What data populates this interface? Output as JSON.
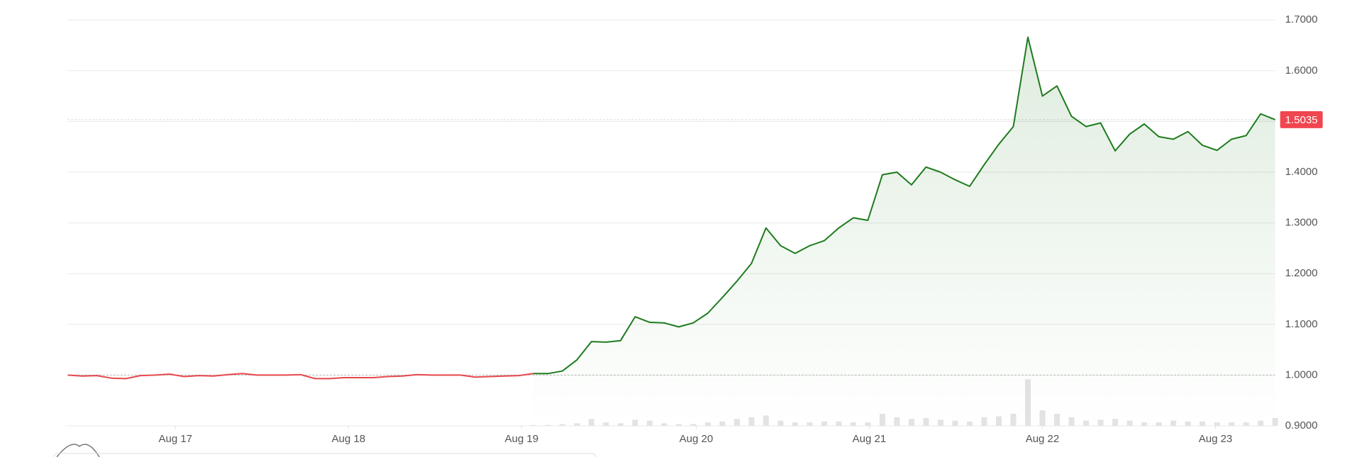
{
  "chart_data": {
    "type": "line",
    "series": [
      {
        "color": "#e5484d",
        "values": [
          1.0,
          0.998,
          0.999,
          0.994,
          0.993,
          0.999,
          1.0,
          1.002,
          0.997,
          0.999,
          0.998,
          1.001,
          1.003,
          1.0,
          1.0,
          1.0,
          1.001,
          0.993,
          0.993,
          0.995,
          0.995,
          0.995,
          0.997,
          0.998,
          1.001,
          1.0,
          1.0,
          1.0,
          0.996,
          0.997,
          0.998,
          0.999,
          1.003,
          null,
          null,
          null,
          null,
          null,
          null,
          null,
          null,
          null,
          null,
          null,
          null,
          null,
          null,
          null,
          null,
          null,
          null,
          null,
          null,
          null,
          null,
          null,
          null,
          null,
          null,
          null,
          null,
          null,
          null,
          null,
          null,
          null,
          null,
          null,
          null,
          null,
          null,
          null,
          null,
          null,
          null,
          null,
          null,
          null,
          null,
          null,
          null,
          null,
          null,
          null
        ]
      },
      {
        "color": "#1e7b1e",
        "values": [
          null,
          null,
          null,
          null,
          null,
          null,
          null,
          null,
          null,
          null,
          null,
          null,
          null,
          null,
          null,
          null,
          null,
          null,
          null,
          null,
          null,
          null,
          null,
          null,
          null,
          null,
          null,
          null,
          null,
          null,
          null,
          null,
          1.003,
          1.003,
          1.008,
          1.03,
          1.066,
          1.065,
          1.068,
          1.115,
          1.104,
          1.103,
          1.095,
          1.103,
          1.122,
          1.153,
          1.185,
          1.22,
          1.29,
          1.255,
          1.24,
          1.255,
          1.265,
          1.29,
          1.31,
          1.305,
          1.395,
          1.4,
          1.375,
          1.41,
          1.4,
          1.385,
          1.372,
          1.415,
          1.455,
          1.49,
          1.666,
          1.55,
          1.57,
          1.51,
          1.49,
          1.497,
          1.442,
          1.475,
          1.495,
          1.47,
          1.465,
          1.48,
          1.453,
          1.443,
          1.465,
          1.472,
          1.515,
          1.5035
        ]
      }
    ],
    "volume": {
      "color": "#e3e3e3",
      "values": [
        0.3,
        0.3,
        0.3,
        0.3,
        0.3,
        0.3,
        0.3,
        0.3,
        0.3,
        0.3,
        0.3,
        0.3,
        0.3,
        0.3,
        0.3,
        0.3,
        0.3,
        0.3,
        0.3,
        0.3,
        0.3,
        0.3,
        0.3,
        0.3,
        0.3,
        0.3,
        0.3,
        0.3,
        0.3,
        0.3,
        0.3,
        0.3,
        1,
        1,
        2,
        3,
        8,
        4,
        3,
        7,
        6,
        3,
        2,
        2,
        4,
        5,
        8,
        10,
        12,
        6,
        4,
        4,
        5,
        5,
        4,
        4,
        14,
        10,
        8,
        9,
        7,
        6,
        5,
        10,
        11,
        14,
        54,
        18,
        14,
        10,
        6,
        7,
        8,
        6,
        4,
        4,
        6,
        5,
        5,
        4,
        4,
        4,
        6,
        9
      ],
      "vlim": [
        0,
        60
      ]
    },
    "reference_value": 1.0,
    "last_price": 1.5035,
    "last_price_color": "#f0464f",
    "area_color": "#1e7b1e",
    "xlim": [
      0,
      83
    ],
    "xticks": [
      {
        "value": 7.4,
        "label": "Aug 17"
      },
      {
        "value": 19.3,
        "label": "Aug 18"
      },
      {
        "value": 31.2,
        "label": "Aug 19"
      },
      {
        "value": 43.2,
        "label": "Aug 20"
      },
      {
        "value": 55.1,
        "label": "Aug 21"
      },
      {
        "value": 67.0,
        "label": "Aug 22"
      },
      {
        "value": 78.9,
        "label": "Aug 23"
      }
    ],
    "ylim": [
      0.9,
      1.7
    ],
    "yticks": [
      {
        "value": 0.9,
        "label": "0.9000"
      },
      {
        "value": 1.0,
        "label": "1.0000"
      },
      {
        "value": 1.1,
        "label": "1.1000"
      },
      {
        "value": 1.2,
        "label": "1.2000"
      },
      {
        "value": 1.3,
        "label": "1.3000"
      },
      {
        "value": 1.4,
        "label": "1.4000"
      },
      {
        "value": 1.5,
        "label": "1.5000"
      },
      {
        "value": 1.6,
        "label": "1.6000"
      },
      {
        "value": 1.7,
        "label": "1.7000"
      }
    ],
    "grid": true
  }
}
